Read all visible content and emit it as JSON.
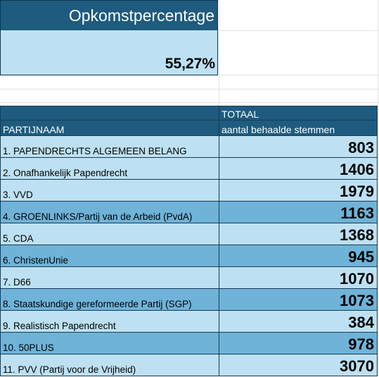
{
  "opkomst": {
    "title": "Opkomstpercentage",
    "value": "55,27%"
  },
  "table": {
    "header": {
      "totaal_label": "TOTAAL",
      "partijnaam_label": "PARTIJNAAM",
      "stemmen_label": "aantal behaalde stemmen"
    },
    "rows": [
      {
        "name": "1. PAPENDRECHTS ALGEMEEN BELANG",
        "votes": "803"
      },
      {
        "name": "2. Onafhankelijk Papendrecht",
        "votes": "1406"
      },
      {
        "name": "3. VVD",
        "votes": "1979"
      },
      {
        "name": "4. GROENLINKS/Partij van de Arbeid (PvdA)",
        "votes": "1163"
      },
      {
        "name": "5. CDA",
        "votes": "1368"
      },
      {
        "name": "6. ChristenUnie",
        "votes": "945"
      },
      {
        "name": "7. D66",
        "votes": "1070"
      },
      {
        "name": "8. Staatskundige gereformeerde Partij (SGP)",
        "votes": "1073"
      },
      {
        "name": "9. Realistisch Papendrecht",
        "votes": "384"
      },
      {
        "name": "10. 50PLUS",
        "votes": "978"
      },
      {
        "name": "11. PVV (Partij voor de Vrijheid)",
        "votes": "3070"
      }
    ]
  },
  "colors": {
    "header_blue": "#1e5b7e",
    "row_light": "#bde1f2",
    "row_dark": "#6fb3d8"
  }
}
